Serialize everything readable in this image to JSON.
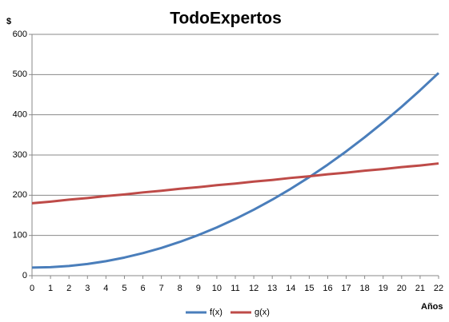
{
  "chart_data": {
    "type": "line",
    "title": "TodoExpertos",
    "y_label": "$",
    "x_label": "Años",
    "x": [
      0,
      1,
      2,
      3,
      4,
      5,
      6,
      7,
      8,
      9,
      10,
      11,
      12,
      13,
      14,
      15,
      16,
      17,
      18,
      19,
      20,
      21,
      22
    ],
    "xlim": [
      0,
      22
    ],
    "xticks": [
      0,
      1,
      2,
      3,
      4,
      5,
      6,
      7,
      8,
      9,
      10,
      11,
      12,
      13,
      14,
      15,
      16,
      17,
      18,
      19,
      20,
      21,
      22
    ],
    "ylim": [
      0,
      600
    ],
    "yticks": [
      0,
      100,
      200,
      300,
      400,
      500,
      600
    ],
    "grid": true,
    "legend": "bottom",
    "series": [
      {
        "name": "f(x)",
        "color": "#4a7ebb",
        "values": [
          20,
          21,
          24,
          29,
          36,
          45,
          56,
          69,
          84,
          101,
          120,
          141,
          164,
          189,
          216,
          245,
          276,
          309,
          344,
          381,
          420,
          461,
          504
        ]
      },
      {
        "name": "g(x)",
        "color": "#be4b48",
        "values": [
          180,
          184,
          189,
          193,
          198,
          202,
          207,
          211,
          216,
          220,
          225,
          229,
          234,
          238,
          243,
          247,
          252,
          256,
          261,
          265,
          270,
          274,
          279
        ]
      }
    ]
  }
}
